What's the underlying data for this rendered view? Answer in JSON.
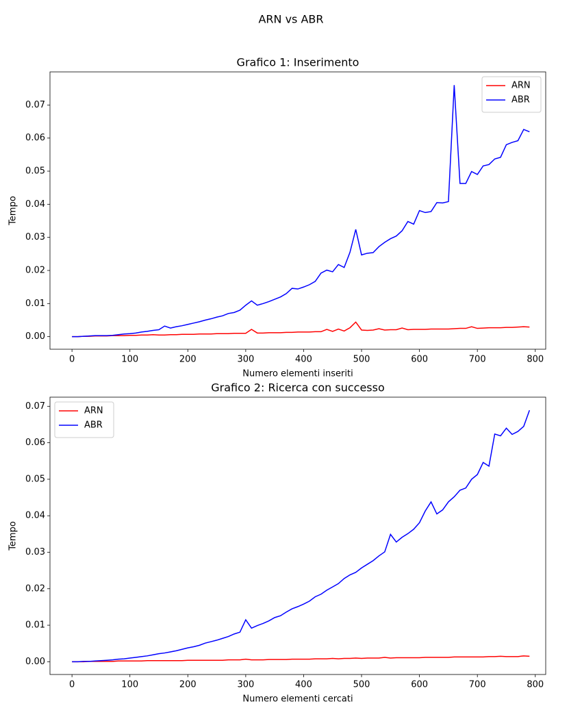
{
  "title": "ARN vs ABR",
  "chart_data": [
    {
      "type": "line",
      "title": "Grafico 1: Inserimento",
      "x_label": "Numero elementi inseriti",
      "y_label": "Tempo",
      "x": [
        0,
        10,
        20,
        30,
        40,
        50,
        60,
        70,
        80,
        90,
        100,
        110,
        120,
        130,
        140,
        150,
        160,
        170,
        180,
        190,
        200,
        210,
        220,
        230,
        240,
        250,
        260,
        270,
        280,
        290,
        300,
        310,
        320,
        330,
        340,
        350,
        360,
        370,
        380,
        390,
        400,
        410,
        420,
        430,
        440,
        450,
        460,
        470,
        480,
        490,
        500,
        510,
        520,
        530,
        540,
        550,
        560,
        570,
        580,
        590,
        600,
        610,
        620,
        630,
        640,
        650,
        660,
        670,
        680,
        690,
        700,
        710,
        720,
        730,
        740,
        750,
        760,
        770,
        780,
        790
      ],
      "series": [
        {
          "name": "ARN",
          "color": "#ff0000",
          "values": [
            0,
            0,
            0.0001,
            0.0001,
            0.0002,
            0.0002,
            0.0002,
            0.0003,
            0.0003,
            0.0003,
            0.0004,
            0.0004,
            0.0005,
            0.0005,
            0.0006,
            0.0005,
            0.0005,
            0.0006,
            0.0006,
            0.0007,
            0.0007,
            0.0007,
            0.0008,
            0.0008,
            0.0008,
            0.0009,
            0.0009,
            0.0009,
            0.001,
            0.001,
            0.001,
            0.0022,
            0.0011,
            0.0011,
            0.0012,
            0.0012,
            0.0012,
            0.0013,
            0.0013,
            0.0014,
            0.0014,
            0.0014,
            0.0015,
            0.0015,
            0.0022,
            0.0016,
            0.0023,
            0.0017,
            0.0027,
            0.0044,
            0.002,
            0.0019,
            0.002,
            0.0024,
            0.002,
            0.0021,
            0.0021,
            0.0026,
            0.0021,
            0.0022,
            0.0022,
            0.0022,
            0.0023,
            0.0023,
            0.0023,
            0.0023,
            0.0024,
            0.0025,
            0.0025,
            0.003,
            0.0025,
            0.0026,
            0.0027,
            0.0027,
            0.0027,
            0.0028,
            0.0028,
            0.0029,
            0.003,
            0.0029
          ]
        },
        {
          "name": "ABR",
          "color": "#0000ff",
          "values": [
            0,
            0,
            0.0001,
            0.0002,
            0.0003,
            0.0003,
            0.0003,
            0.0004,
            0.0006,
            0.0008,
            0.0009,
            0.0011,
            0.0014,
            0.0016,
            0.0019,
            0.0021,
            0.0032,
            0.0026,
            0.003,
            0.0033,
            0.0037,
            0.0041,
            0.0045,
            0.005,
            0.0054,
            0.0059,
            0.0063,
            0.007,
            0.0073,
            0.008,
            0.0095,
            0.0108,
            0.0095,
            0.01,
            0.0106,
            0.0113,
            0.012,
            0.013,
            0.0146,
            0.0144,
            0.015,
            0.0157,
            0.0167,
            0.0192,
            0.0201,
            0.0196,
            0.0218,
            0.0209,
            0.0255,
            0.0324,
            0.0247,
            0.0252,
            0.0254,
            0.0272,
            0.0285,
            0.0296,
            0.0304,
            0.032,
            0.0348,
            0.034,
            0.0381,
            0.0375,
            0.0378,
            0.0405,
            0.0404,
            0.0408,
            0.076,
            0.0463,
            0.0463,
            0.0499,
            0.049,
            0.0516,
            0.052,
            0.0537,
            0.0542,
            0.058,
            0.0587,
            0.0592,
            0.0626,
            0.0619
          ]
        }
      ],
      "xlim": [
        -38,
        818
      ],
      "xticks": [
        0,
        100,
        200,
        300,
        400,
        500,
        600,
        700,
        800
      ],
      "ylim": [
        -0.0038,
        0.08
      ],
      "yticks": [
        {
          "value": 0,
          "label": "0.00"
        },
        {
          "value": 0.01,
          "label": "0.01"
        },
        {
          "value": 0.02,
          "label": "0.02"
        },
        {
          "value": 0.03,
          "label": "0.03"
        },
        {
          "value": 0.04,
          "label": "0.04"
        },
        {
          "value": 0.05,
          "label": "0.05"
        },
        {
          "value": 0.06,
          "label": "0.06"
        },
        {
          "value": 0.07,
          "label": "0.07"
        }
      ],
      "legend": "upper right"
    },
    {
      "type": "line",
      "title": "Grafico 2: Ricerca con successo",
      "x_label": "Numero elementi cercati",
      "y_label": "Tempo",
      "x": [
        0,
        10,
        20,
        30,
        40,
        50,
        60,
        70,
        80,
        90,
        100,
        110,
        120,
        130,
        140,
        150,
        160,
        170,
        180,
        190,
        200,
        210,
        220,
        230,
        240,
        250,
        260,
        270,
        280,
        290,
        300,
        310,
        320,
        330,
        340,
        350,
        360,
        370,
        380,
        390,
        400,
        410,
        420,
        430,
        440,
        450,
        460,
        470,
        480,
        490,
        500,
        510,
        520,
        530,
        540,
        550,
        560,
        570,
        580,
        590,
        600,
        610,
        620,
        630,
        640,
        650,
        660,
        670,
        680,
        690,
        700,
        710,
        720,
        730,
        740,
        750,
        760,
        770,
        780,
        790
      ],
      "series": [
        {
          "name": "ARN",
          "color": "#ff0000",
          "values": [
            0,
            0,
            0,
            0.0001,
            0.0001,
            0.0001,
            0.0001,
            0.0001,
            0.0002,
            0.0002,
            0.0002,
            0.0002,
            0.0002,
            0.0003,
            0.0003,
            0.0003,
            0.0003,
            0.0003,
            0.0003,
            0.0003,
            0.0004,
            0.0004,
            0.0004,
            0.0004,
            0.0004,
            0.0004,
            0.0004,
            0.0005,
            0.0005,
            0.0005,
            0.0007,
            0.0005,
            0.0005,
            0.0005,
            0.0006,
            0.0006,
            0.0006,
            0.0006,
            0.0007,
            0.0007,
            0.0007,
            0.0007,
            0.0008,
            0.0008,
            0.0008,
            0.0009,
            0.0008,
            0.0009,
            0.0009,
            0.001,
            0.0009,
            0.001,
            0.001,
            0.001,
            0.0012,
            0.001,
            0.0011,
            0.0011,
            0.0011,
            0.0011,
            0.0011,
            0.0012,
            0.0012,
            0.0012,
            0.0012,
            0.0012,
            0.0013,
            0.0013,
            0.0013,
            0.0013,
            0.0013,
            0.0013,
            0.0014,
            0.0014,
            0.0015,
            0.0014,
            0.0014,
            0.0014,
            0.0016,
            0.0015
          ]
        },
        {
          "name": "ABR",
          "color": "#0000ff",
          "values": [
            0,
            0,
            0.0001,
            0.0001,
            0.0002,
            0.0003,
            0.0004,
            0.0005,
            0.0007,
            0.0008,
            0.001,
            0.0012,
            0.0014,
            0.0016,
            0.0019,
            0.0022,
            0.0024,
            0.0027,
            0.003,
            0.0034,
            0.0038,
            0.0041,
            0.0045,
            0.0051,
            0.0055,
            0.0059,
            0.0064,
            0.0069,
            0.0076,
            0.0081,
            0.0115,
            0.0092,
            0.0099,
            0.0105,
            0.0112,
            0.0121,
            0.0126,
            0.0136,
            0.0145,
            0.0151,
            0.0158,
            0.0166,
            0.0178,
            0.0185,
            0.0196,
            0.0205,
            0.0214,
            0.0228,
            0.0238,
            0.0245,
            0.0257,
            0.0267,
            0.0277,
            0.029,
            0.0301,
            0.0349,
            0.0328,
            0.0341,
            0.0351,
            0.0363,
            0.0381,
            0.0413,
            0.0438,
            0.0405,
            0.0416,
            0.0438,
            0.0452,
            0.047,
            0.0476,
            0.05,
            0.0513,
            0.0546,
            0.0536,
            0.0624,
            0.0619,
            0.064,
            0.0623,
            0.0631,
            0.0645,
            0.0689
          ]
        }
      ],
      "xlim": [
        -38,
        818
      ],
      "xticks": [
        0,
        100,
        200,
        300,
        400,
        500,
        600,
        700,
        800
      ],
      "ylim": [
        -0.0035,
        0.0725
      ],
      "yticks": [
        {
          "value": 0,
          "label": "0.00"
        },
        {
          "value": 0.01,
          "label": "0.01"
        },
        {
          "value": 0.02,
          "label": "0.02"
        },
        {
          "value": 0.03,
          "label": "0.03"
        },
        {
          "value": 0.04,
          "label": "0.04"
        },
        {
          "value": 0.05,
          "label": "0.05"
        },
        {
          "value": 0.06,
          "label": "0.06"
        },
        {
          "value": 0.07,
          "label": "0.07"
        }
      ],
      "legend": "upper left"
    }
  ]
}
